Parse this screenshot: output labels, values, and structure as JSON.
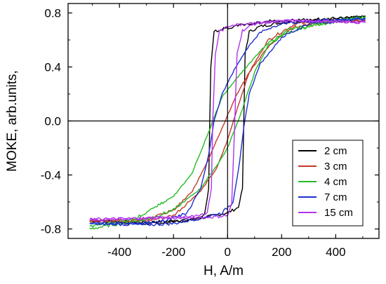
{
  "chart_data": {
    "type": "line",
    "title": "",
    "xlabel": "H, A/m",
    "ylabel": "MOKE, arb.units,",
    "xlim": [
      -590,
      560
    ],
    "ylim": [
      -0.87,
      0.87
    ],
    "xticks": [
      -400,
      -200,
      0,
      200,
      400
    ],
    "xtick_labels": [
      "-400",
      "-200",
      "0",
      "200",
      "400"
    ],
    "yticks": [
      -0.8,
      -0.4,
      0.0,
      0.4,
      0.8
    ],
    "ytick_labels": [
      "-0.8",
      "-0.4",
      "0.0",
      "0.4",
      "0.8"
    ],
    "grid": false,
    "zero_lines": true,
    "legend_position": "lower-right",
    "series": [
      {
        "name": "2 cm",
        "color": "#000000",
        "up": [
          [
            -510,
            -0.74
          ],
          [
            -300,
            -0.75
          ],
          [
            -200,
            -0.74
          ],
          [
            -100,
            -0.72
          ],
          [
            0,
            -0.68
          ],
          [
            40,
            -0.64
          ],
          [
            55,
            -0.5
          ],
          [
            60,
            0.0
          ],
          [
            65,
            0.5
          ],
          [
            80,
            0.66
          ],
          [
            120,
            0.7
          ],
          [
            200,
            0.73
          ],
          [
            300,
            0.74
          ],
          [
            400,
            0.76
          ],
          [
            510,
            0.77
          ]
        ],
        "down": [
          [
            510,
            0.77
          ],
          [
            300,
            0.75
          ],
          [
            150,
            0.74
          ],
          [
            50,
            0.71
          ],
          [
            -20,
            0.68
          ],
          [
            -50,
            0.66
          ],
          [
            -62,
            0.4
          ],
          [
            -66,
            0.0
          ],
          [
            -70,
            -0.5
          ],
          [
            -85,
            -0.7
          ],
          [
            -150,
            -0.74
          ],
          [
            -300,
            -0.76
          ],
          [
            -510,
            -0.74
          ]
        ]
      },
      {
        "name": "3 cm",
        "color": "#c0392b",
        "up": [
          [
            -510,
            -0.74
          ],
          [
            -300,
            -0.74
          ],
          [
            -200,
            -0.7
          ],
          [
            -100,
            -0.52
          ],
          [
            -40,
            -0.35
          ],
          [
            0,
            -0.14
          ],
          [
            40,
            0.12
          ],
          [
            80,
            0.36
          ],
          [
            150,
            0.6
          ],
          [
            250,
            0.72
          ],
          [
            400,
            0.74
          ],
          [
            510,
            0.74
          ]
        ],
        "down": [
          [
            510,
            0.74
          ],
          [
            400,
            0.74
          ],
          [
            250,
            0.7
          ],
          [
            150,
            0.55
          ],
          [
            80,
            0.36
          ],
          [
            30,
            0.18
          ],
          [
            -20,
            -0.05
          ],
          [
            -70,
            -0.28
          ],
          [
            -130,
            -0.52
          ],
          [
            -200,
            -0.66
          ],
          [
            -300,
            -0.73
          ],
          [
            -510,
            -0.74
          ]
        ]
      },
      {
        "name": "4 cm",
        "color": "#22bb22",
        "up": [
          [
            -510,
            -0.8
          ],
          [
            -400,
            -0.76
          ],
          [
            -300,
            -0.73
          ],
          [
            -200,
            -0.66
          ],
          [
            -100,
            -0.5
          ],
          [
            -30,
            -0.3
          ],
          [
            0,
            -0.2
          ],
          [
            50,
            0.06
          ],
          [
            100,
            0.36
          ],
          [
            150,
            0.56
          ],
          [
            230,
            0.68
          ],
          [
            350,
            0.72
          ],
          [
            510,
            0.77
          ]
        ],
        "down": [
          [
            510,
            0.77
          ],
          [
            350,
            0.73
          ],
          [
            230,
            0.66
          ],
          [
            150,
            0.58
          ],
          [
            100,
            0.47
          ],
          [
            40,
            0.33
          ],
          [
            -20,
            0.18
          ],
          [
            -70,
            -0.08
          ],
          [
            -130,
            -0.38
          ],
          [
            -200,
            -0.56
          ],
          [
            -250,
            -0.62
          ],
          [
            -350,
            -0.73
          ],
          [
            -510,
            -0.78
          ]
        ]
      },
      {
        "name": "7 cm",
        "color": "#1f2fd0",
        "up": [
          [
            -510,
            -0.76
          ],
          [
            -300,
            -0.77
          ],
          [
            -200,
            -0.76
          ],
          [
            -100,
            -0.72
          ],
          [
            -20,
            -0.68
          ],
          [
            20,
            -0.6
          ],
          [
            45,
            -0.3
          ],
          [
            60,
            -0.05
          ],
          [
            80,
            0.2
          ],
          [
            120,
            0.42
          ],
          [
            200,
            0.62
          ],
          [
            300,
            0.72
          ],
          [
            510,
            0.76
          ]
        ],
        "down": [
          [
            510,
            0.76
          ],
          [
            300,
            0.74
          ],
          [
            200,
            0.72
          ],
          [
            130,
            0.67
          ],
          [
            80,
            0.56
          ],
          [
            30,
            0.4
          ],
          [
            -20,
            0.2
          ],
          [
            -50,
            0.0
          ],
          [
            -70,
            -0.25
          ],
          [
            -100,
            -0.5
          ],
          [
            -150,
            -0.68
          ],
          [
            -250,
            -0.75
          ],
          [
            -510,
            -0.76
          ]
        ]
      },
      {
        "name": "15 cm",
        "color": "#b133ee",
        "up": [
          [
            -510,
            -0.73
          ],
          [
            -300,
            -0.72
          ],
          [
            -150,
            -0.72
          ],
          [
            -50,
            -0.71
          ],
          [
            0,
            -0.7
          ],
          [
            15,
            -0.62
          ],
          [
            25,
            -0.1
          ],
          [
            35,
            0.5
          ],
          [
            55,
            0.67
          ],
          [
            100,
            0.72
          ],
          [
            200,
            0.74
          ],
          [
            350,
            0.74
          ],
          [
            510,
            0.73
          ]
        ],
        "down": [
          [
            510,
            0.73
          ],
          [
            350,
            0.74
          ],
          [
            200,
            0.74
          ],
          [
            100,
            0.73
          ],
          [
            0,
            0.7
          ],
          [
            -30,
            0.66
          ],
          [
            -45,
            0.5
          ],
          [
            -55,
            0.0
          ],
          [
            -60,
            -0.5
          ],
          [
            -75,
            -0.68
          ],
          [
            -150,
            -0.71
          ],
          [
            -300,
            -0.72
          ],
          [
            -510,
            -0.73
          ]
        ]
      }
    ]
  }
}
